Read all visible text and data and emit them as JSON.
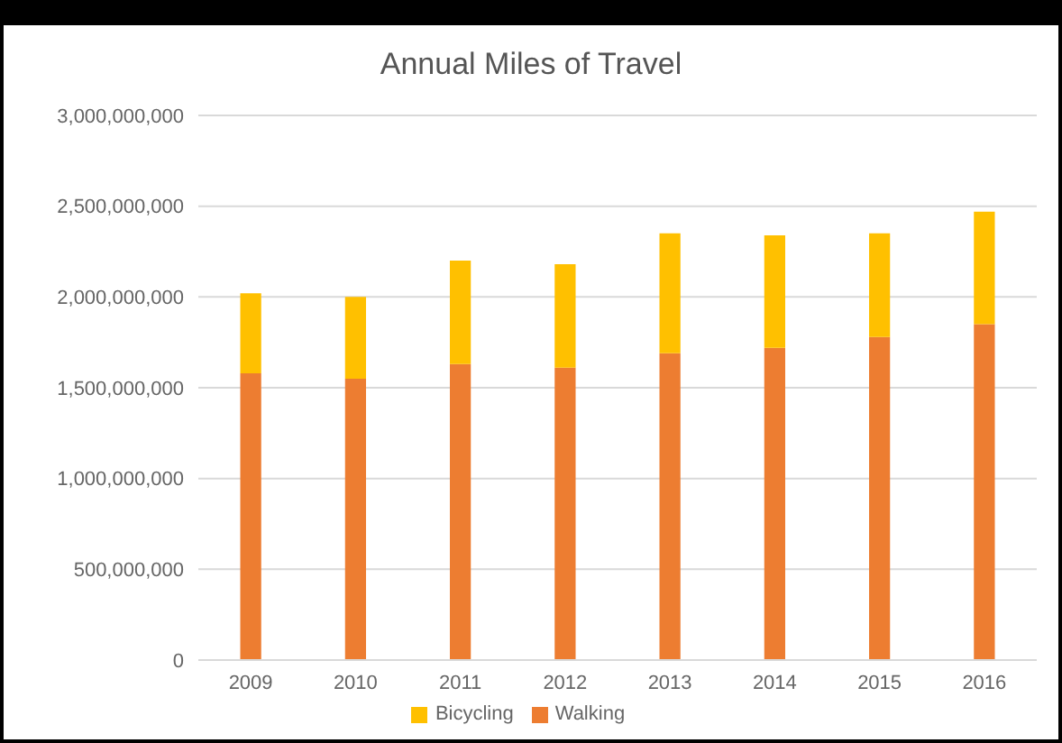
{
  "chart_data": {
    "type": "bar",
    "title": "Annual Miles of Travel",
    "categories": [
      "2009",
      "2010",
      "2011",
      "2012",
      "2013",
      "2014",
      "2015",
      "2016"
    ],
    "stacked": true,
    "series": [
      {
        "name": "Walking",
        "color": "#ed7d31",
        "values": [
          1580000000,
          1550000000,
          1630000000,
          1610000000,
          1690000000,
          1720000000,
          1780000000,
          1850000000
        ]
      },
      {
        "name": "Bicycling",
        "color": "#ffc000",
        "values": [
          440000000,
          450000000,
          570000000,
          570000000,
          660000000,
          620000000,
          570000000,
          620000000
        ]
      }
    ],
    "ylim": [
      0,
      3000000000
    ],
    "yticks": [
      0,
      {
        "value": 500000000,
        "label": "500,000,000"
      },
      {
        "value": 1000000000,
        "label": "1,000,000,000"
      },
      {
        "value": 1500000000,
        "label": "1,500,000,000"
      },
      {
        "value": 2000000000,
        "label": "2,000,000,000"
      },
      {
        "value": 2500000000,
        "label": "2,500,000,000"
      },
      {
        "value": 3000000000,
        "label": "3,000,000,000"
      }
    ],
    "grid": "y",
    "legend": "bottom"
  }
}
